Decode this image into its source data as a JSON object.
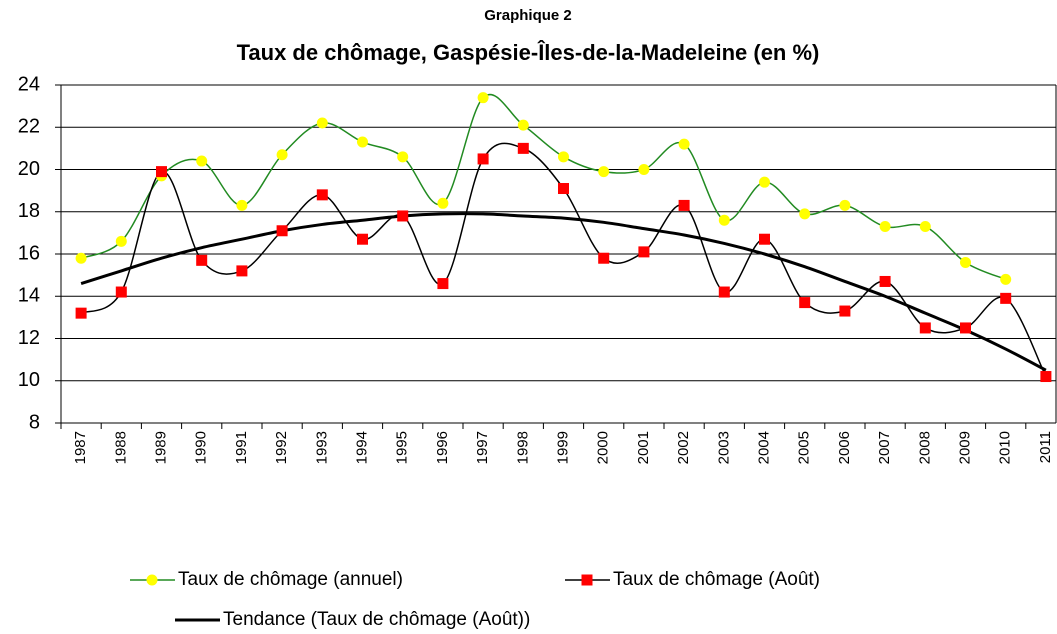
{
  "chart_data": {
    "type": "line",
    "supertitle": "Graphique 2",
    "title": "Taux de chômage, Gaspésie-Îles-de-la-Madeleine (en %)",
    "categories": [
      "1987",
      "1988",
      "1989",
      "1990",
      "1991",
      "1992",
      "1993",
      "1994",
      "1995",
      "1996",
      "1997",
      "1998",
      "1999",
      "2000",
      "2001",
      "2002",
      "2003",
      "2004",
      "2005",
      "2006",
      "2007",
      "2008",
      "2009",
      "2010",
      "2011"
    ],
    "series": [
      {
        "name": "Taux de chômage (annuel)",
        "color": "#228b22",
        "marker": "circle",
        "marker_color": "#ffff00",
        "values": [
          15.8,
          16.6,
          19.7,
          20.4,
          18.3,
          20.7,
          22.2,
          21.3,
          20.6,
          18.4,
          23.4,
          22.1,
          20.6,
          19.9,
          20.0,
          21.2,
          17.6,
          19.4,
          17.9,
          18.3,
          17.3,
          17.3,
          15.6,
          14.8,
          null
        ]
      },
      {
        "name": "Taux de chômage (Août)",
        "color": "#000000",
        "marker": "square",
        "marker_color": "#ff0000",
        "values": [
          13.2,
          14.2,
          19.9,
          15.7,
          15.2,
          17.1,
          18.8,
          16.7,
          17.8,
          14.6,
          20.5,
          21.0,
          19.1,
          15.8,
          16.1,
          18.3,
          14.2,
          16.7,
          13.7,
          13.3,
          14.7,
          12.5,
          12.5,
          13.9,
          10.2
        ]
      },
      {
        "name": "Tendance (Taux de chômage (Août))",
        "color": "#000000",
        "marker": "none",
        "line_width": 3,
        "values": [
          14.6,
          15.2,
          15.8,
          16.3,
          16.7,
          17.1,
          17.4,
          17.6,
          17.8,
          17.9,
          17.9,
          17.8,
          17.7,
          17.5,
          17.2,
          16.9,
          16.5,
          16.0,
          15.4,
          14.7,
          14.0,
          13.2,
          12.4,
          11.5,
          10.5
        ]
      }
    ],
    "ylim": [
      8,
      24
    ],
    "yticks": [
      8,
      10,
      12,
      14,
      16,
      18,
      20,
      22,
      24
    ],
    "grid": true,
    "legend": "bottom"
  }
}
